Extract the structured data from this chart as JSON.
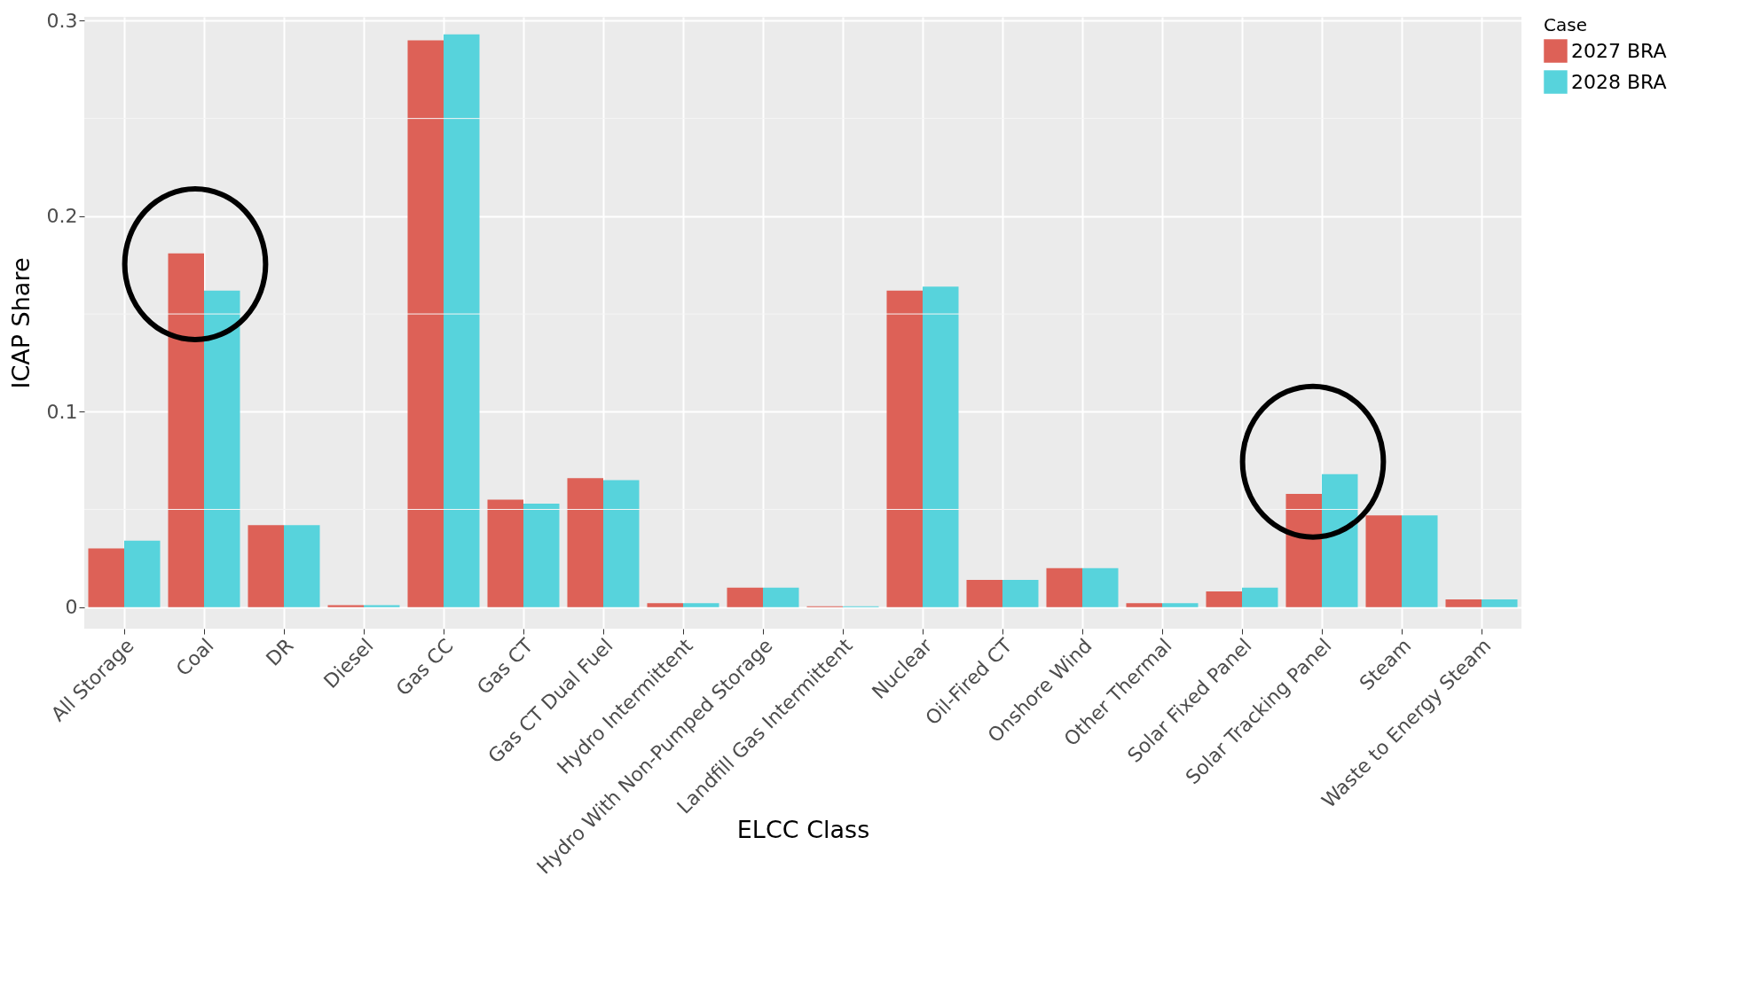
{
  "chart_data": {
    "type": "bar",
    "xlabel": "ELCC Class",
    "ylabel": "ICAP Share",
    "legend_title": "Case",
    "legend": "right",
    "grid": true,
    "categories": [
      "All Storage",
      "Coal",
      "DR",
      "Diesel",
      "Gas CC",
      "Gas CT",
      "Gas CT Dual Fuel",
      "Hydro Intermittent",
      "Hydro With Non-Pumped Storage",
      "Landfill Gas Intermittent",
      "Nuclear",
      "Oil-Fired CT",
      "Onshore Wind",
      "Other Thermal",
      "Solar Fixed Panel",
      "Solar Tracking Panel",
      "Steam",
      "Waste to Energy Steam"
    ],
    "ylim": [
      -0.011,
      0.302
    ],
    "yticks": [
      0,
      0.1,
      0.2,
      0.3
    ],
    "series": [
      {
        "name": "2027 BRA",
        "color": "#dd6157",
        "values": [
          0.03,
          0.181,
          0.042,
          0.001,
          0.29,
          0.055,
          0.066,
          0.002,
          0.01,
          0.0005,
          0.162,
          0.014,
          0.02,
          0.002,
          0.008,
          0.058,
          0.047,
          0.004
        ]
      },
      {
        "name": "2028 BRA",
        "color": "#57d3dc",
        "values": [
          0.034,
          0.162,
          0.042,
          0.001,
          0.293,
          0.053,
          0.065,
          0.002,
          0.01,
          0.0005,
          0.164,
          0.014,
          0.02,
          0.002,
          0.01,
          0.068,
          0.047,
          0.004
        ]
      }
    ]
  }
}
